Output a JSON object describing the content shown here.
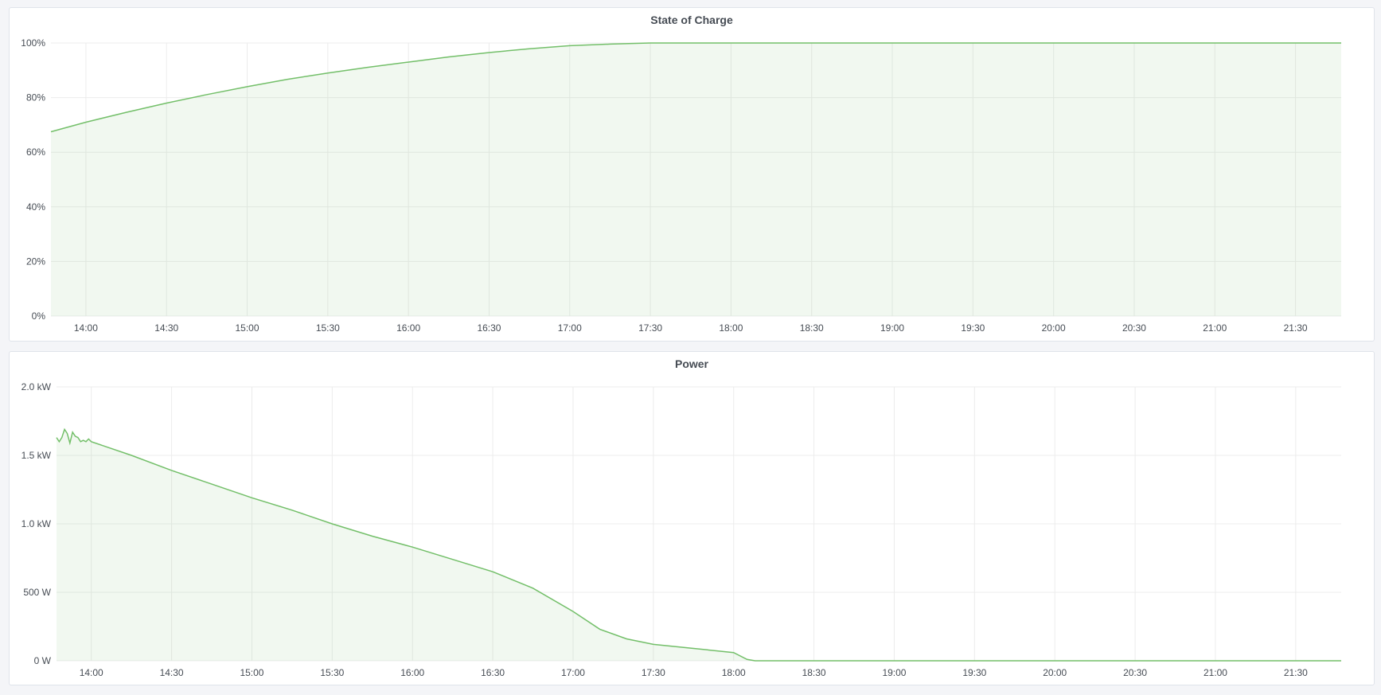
{
  "chart_data": [
    {
      "type": "area",
      "title": "State of Charge",
      "x_range": [
        "13:47",
        "21:47"
      ],
      "ylim": [
        0,
        100
      ],
      "y_ticks": [
        "0%",
        "20%",
        "40%",
        "60%",
        "80%",
        "100%"
      ],
      "y_tick_values": [
        0,
        20,
        40,
        60,
        80,
        100
      ],
      "x_ticks": [
        "14:00",
        "14:30",
        "15:00",
        "15:30",
        "16:00",
        "16:30",
        "17:00",
        "17:30",
        "18:00",
        "18:30",
        "19:00",
        "19:30",
        "20:00",
        "20:30",
        "21:00",
        "21:30"
      ],
      "grid": true,
      "color": "#73bf69",
      "x": [
        "13:47",
        "14:00",
        "14:15",
        "14:30",
        "14:45",
        "15:00",
        "15:15",
        "15:30",
        "15:45",
        "16:00",
        "16:15",
        "16:30",
        "16:45",
        "17:00",
        "17:15",
        "17:30",
        "18:00",
        "21:47"
      ],
      "y": [
        67.5,
        71,
        74.6,
        78,
        81.1,
        84,
        86.7,
        89,
        91.1,
        93,
        94.9,
        96.5,
        97.9,
        99,
        99.6,
        100,
        100,
        100
      ]
    },
    {
      "type": "area",
      "title": "Power",
      "x_range": [
        "13:47",
        "21:47"
      ],
      "ylim": [
        0,
        2000
      ],
      "y_ticks": [
        "0 W",
        "500 W",
        "1.0 kW",
        "1.5 kW",
        "2.0 kW"
      ],
      "y_tick_values": [
        0,
        500,
        1000,
        1500,
        2000
      ],
      "x_ticks": [
        "14:00",
        "14:30",
        "15:00",
        "15:30",
        "16:00",
        "16:30",
        "17:00",
        "17:30",
        "18:00",
        "18:30",
        "19:00",
        "19:30",
        "20:00",
        "20:30",
        "21:00",
        "21:30"
      ],
      "grid": true,
      "color": "#73bf69",
      "x": [
        "13:47",
        "13:48",
        "13:49",
        "13:50",
        "13:51",
        "13:52",
        "13:53",
        "13:54",
        "13:55",
        "13:56",
        "13:57",
        "13:58",
        "13:59",
        "14:00",
        "14:15",
        "14:30",
        "14:45",
        "15:00",
        "15:15",
        "15:30",
        "15:45",
        "16:00",
        "16:15",
        "16:30",
        "16:45",
        "17:00",
        "17:10",
        "17:20",
        "17:30",
        "17:45",
        "18:00",
        "18:05",
        "18:08",
        "21:47"
      ],
      "y": [
        1630,
        1600,
        1630,
        1690,
        1660,
        1590,
        1670,
        1640,
        1630,
        1600,
        1610,
        1600,
        1620,
        1600,
        1500,
        1390,
        1290,
        1190,
        1100,
        1000,
        910,
        830,
        740,
        650,
        530,
        360,
        230,
        160,
        120,
        90,
        60,
        10,
        0,
        0
      ]
    }
  ]
}
